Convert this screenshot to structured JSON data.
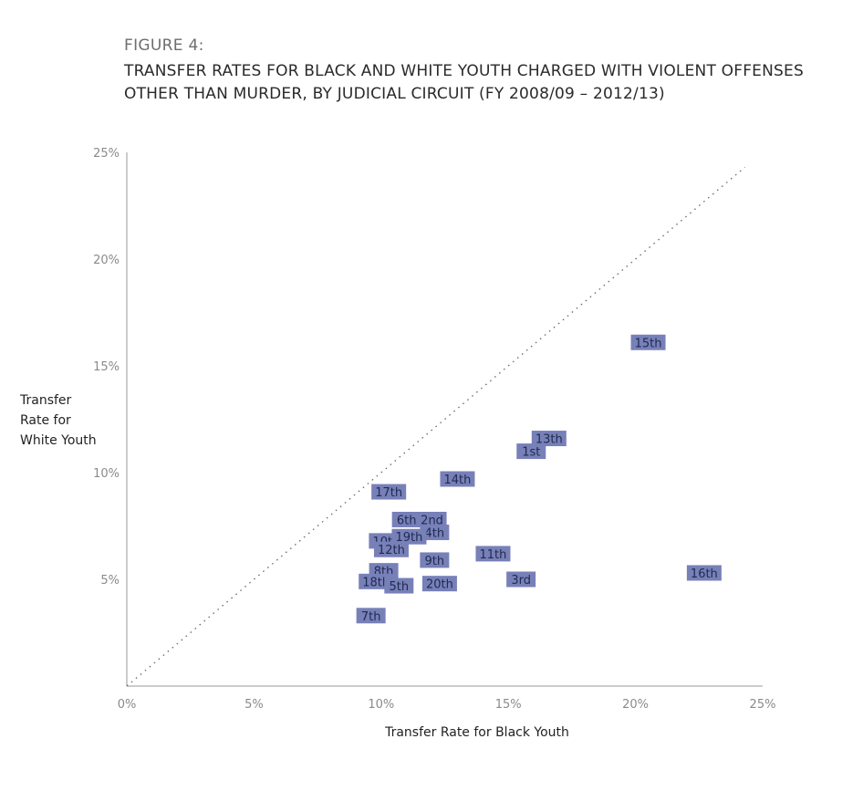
{
  "figure_label": "FIGURE 4:",
  "title_line1": "TRANSFER RATES FOR BLACK AND WHITE YOUTH CHARGED WITH VIOLENT OFFENSES",
  "title_line2": "OTHER THAN MURDER, BY JUDICIAL CIRCUIT (FY 2008/09 – 2012/13)",
  "ylabel_lines": [
    "Transfer",
    "Rate for",
    "White Youth"
  ],
  "chart_data": {
    "type": "scatter",
    "title": "TRANSFER RATES FOR BLACK AND WHITE YOUTH CHARGED WITH VIOLENT OFFENSES OTHER THAN MURDER, BY JUDICIAL CIRCUIT (FY 2008/09 – 2012/13)",
    "xlabel": "Transfer Rate for Black Youth",
    "ylabel": "Transfer Rate for White Youth",
    "xlim": [
      0,
      25
    ],
    "ylim": [
      0,
      25
    ],
    "x_ticks": [
      "0%",
      "5%",
      "10%",
      "15%",
      "20%",
      "25%"
    ],
    "y_ticks": [
      "5%",
      "10%",
      "15%",
      "20%",
      "25%"
    ],
    "reference_line": "y = x (dotted)",
    "point_color": "#7880b8",
    "points": [
      {
        "label": "15th",
        "x": 20.5,
        "y": 16.1
      },
      {
        "label": "13th",
        "x": 16.6,
        "y": 11.6
      },
      {
        "label": "1st",
        "x": 15.9,
        "y": 11.0
      },
      {
        "label": "14th",
        "x": 13.0,
        "y": 9.7
      },
      {
        "label": "17th",
        "x": 10.3,
        "y": 9.1
      },
      {
        "label": "6th",
        "x": 11.0,
        "y": 7.8
      },
      {
        "label": "2nd",
        "x": 12.0,
        "y": 7.8
      },
      {
        "label": "4th",
        "x": 12.1,
        "y": 7.2
      },
      {
        "label": "10th",
        "x": 10.2,
        "y": 6.8
      },
      {
        "label": "19th",
        "x": 11.1,
        "y": 7.0
      },
      {
        "label": "12th",
        "x": 10.4,
        "y": 6.4
      },
      {
        "label": "9th",
        "x": 12.1,
        "y": 5.9
      },
      {
        "label": "11th",
        "x": 14.4,
        "y": 6.2
      },
      {
        "label": "8th",
        "x": 10.1,
        "y": 5.4
      },
      {
        "label": "18th",
        "x": 9.8,
        "y": 4.9
      },
      {
        "label": "5th",
        "x": 10.7,
        "y": 4.7
      },
      {
        "label": "20th",
        "x": 12.3,
        "y": 4.8
      },
      {
        "label": "3rd",
        "x": 15.5,
        "y": 5.0
      },
      {
        "label": "16th",
        "x": 22.7,
        "y": 5.3
      },
      {
        "label": "7th",
        "x": 9.6,
        "y": 3.3
      }
    ]
  }
}
